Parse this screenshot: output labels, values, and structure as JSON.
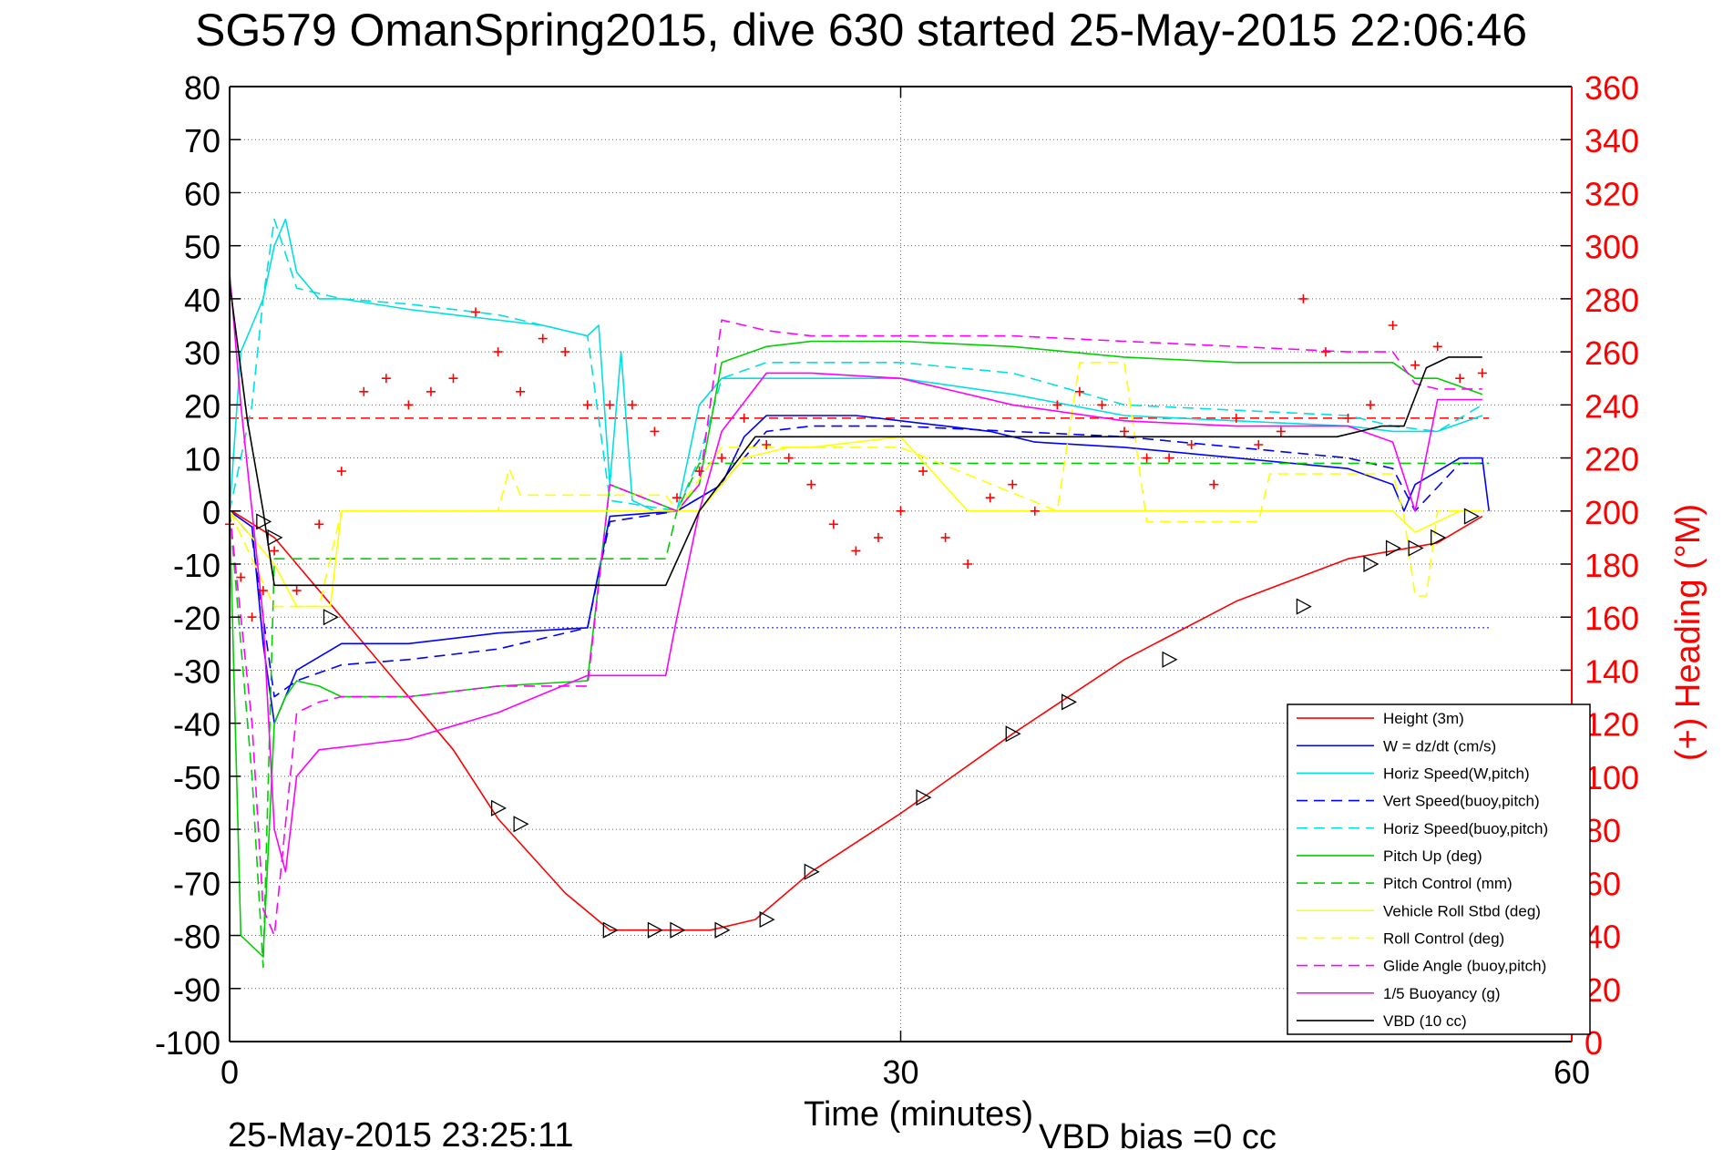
{
  "figure": {
    "title": "SG579 OmanSpring2015, dive 630 started 25-May-2015 22:06:46",
    "timestamp": "25-May-2015 23:25:11",
    "vbd_bias": "VBD bias =0 cc"
  },
  "chart_data": {
    "type": "line",
    "title": "SG579 OmanSpring2015, dive 630 started 25-May-2015 22:06:46",
    "xlabel": "Time (minutes)",
    "ylabel": "",
    "ylabel_right": "(+) Heading (°M)",
    "xlim": [
      0,
      60
    ],
    "ylim": [
      -100,
      80
    ],
    "ylim_right": [
      0,
      360
    ],
    "x_ticks": [
      "0",
      "30",
      "60"
    ],
    "x_tick_values": [
      0,
      30,
      60
    ],
    "y_ticks": [
      "80",
      "70",
      "60",
      "50",
      "40",
      "30",
      "20",
      "10",
      "0",
      "-10",
      "-20",
      "-30",
      "-40",
      "-50",
      "-60",
      "-70",
      "-80",
      "-90",
      "-100"
    ],
    "y_tick_values": [
      80,
      70,
      60,
      50,
      40,
      30,
      20,
      10,
      0,
      -10,
      -20,
      -30,
      -40,
      -50,
      -60,
      -70,
      -80,
      -90,
      -100
    ],
    "y_ticks_right": [
      "360",
      "340",
      "320",
      "300",
      "280",
      "260",
      "240",
      "220",
      "200",
      "180",
      "160",
      "140",
      "120",
      "100",
      "80",
      "60",
      "40",
      "20",
      "0"
    ],
    "y_tick_values_right": [
      360,
      340,
      320,
      300,
      280,
      260,
      240,
      220,
      200,
      180,
      160,
      140,
      120,
      100,
      80,
      60,
      40,
      20,
      0
    ],
    "grid": true,
    "legend_position": "bottom-right",
    "heading_ref": 235,
    "series": [
      {
        "name": "Height (3m)",
        "color": "#ff0000",
        "dash": "solid",
        "x": [
          0.1,
          2,
          5,
          10,
          12,
          15,
          17,
          18,
          20,
          21.5,
          23.5,
          26,
          30,
          35,
          40,
          45,
          50,
          54,
          56
        ],
        "y": [
          0,
          -5,
          -20,
          -45,
          -58,
          -72,
          -79,
          -79,
          -79,
          -79,
          -77,
          -68,
          -57,
          -42,
          -28,
          -17,
          -9,
          -6,
          -1
        ]
      },
      {
        "name": "W = dz/dt (cm/s)",
        "color": "#0000ff",
        "dash": "solid",
        "x": [
          0,
          1,
          1.5,
          2,
          3,
          5,
          8,
          12,
          16,
          17,
          20,
          22,
          23,
          24,
          26,
          28,
          30,
          32,
          34,
          36,
          40,
          45,
          50,
          52,
          52.5,
          53,
          55,
          56,
          56.3
        ],
        "y": [
          0,
          -3,
          -25,
          -40,
          -30,
          -25,
          -25,
          -23,
          -22,
          -1,
          0,
          5,
          14,
          18,
          18,
          18,
          17,
          16,
          15,
          13,
          12,
          10,
          8,
          5,
          0,
          5,
          10,
          10,
          0
        ]
      },
      {
        "name": "Horiz Speed(W,pitch)",
        "color": "#00e0e0",
        "dash": "solid",
        "x": [
          0,
          0.5,
          1,
          1.5,
          2,
          2.5,
          3,
          4,
          5,
          8,
          10,
          14,
          16,
          16.5,
          17,
          17.5,
          18,
          19,
          20,
          21,
          22,
          24,
          26,
          30,
          35,
          40,
          45,
          50,
          52,
          53,
          54,
          56
        ],
        "y": [
          0,
          30,
          35,
          40,
          50,
          55,
          45,
          40,
          40,
          38,
          37,
          35,
          33,
          35,
          5,
          30,
          2,
          0,
          0,
          20,
          25,
          25,
          25,
          25,
          22,
          18,
          17,
          16,
          15,
          15,
          15,
          18
        ]
      },
      {
        "name": "Vert Speed(buoy,pitch)",
        "color": "#0000ff",
        "dash": "dash",
        "x": [
          0,
          1,
          1.5,
          2,
          3,
          5,
          8,
          12,
          16,
          17,
          20,
          22,
          24,
          26,
          30,
          35,
          40,
          45,
          50,
          52,
          53,
          55,
          56
        ],
        "y": [
          0,
          -5,
          -20,
          -35,
          -32,
          -29,
          -28,
          -26,
          -22,
          -2,
          0,
          5,
          15,
          16,
          16,
          15,
          14,
          12,
          10,
          8,
          0,
          9,
          9
        ]
      },
      {
        "name": "Horiz Speed(buoy,pitch)",
        "color": "#00e0e0",
        "dash": "dash",
        "x": [
          0,
          1,
          1.5,
          2,
          3,
          5,
          8,
          12,
          16,
          17,
          20,
          21,
          22,
          24,
          26,
          30,
          35,
          40,
          45,
          50,
          52,
          54,
          56
        ],
        "y": [
          0,
          20,
          40,
          55,
          42,
          40,
          39,
          37,
          33,
          2,
          0,
          10,
          25,
          28,
          28,
          28,
          26,
          20,
          19,
          18,
          16,
          15,
          20
        ]
      },
      {
        "name": "Pitch Up (deg)",
        "color": "#00d000",
        "dash": "solid",
        "x": [
          0,
          0.5,
          1.5,
          2,
          2.5,
          3,
          4,
          5,
          8,
          12,
          16,
          17,
          20,
          21,
          22,
          24,
          26,
          30,
          35,
          40,
          45,
          50,
          52,
          53,
          54,
          56
        ],
        "y": [
          0,
          -80,
          -84,
          -40,
          -35,
          -32,
          -33,
          -35,
          -35,
          -33,
          -32,
          5,
          0,
          5,
          28,
          31,
          32,
          32,
          31,
          29,
          28,
          28,
          28,
          25,
          25,
          22
        ]
      },
      {
        "name": "Pitch Control (mm)",
        "color": "#00d000",
        "dash": "dash",
        "x": [
          0,
          1,
          1.5,
          2,
          3,
          19.5,
          20,
          21,
          22,
          56.3
        ],
        "y": [
          0,
          -50,
          -86,
          -9,
          -9,
          -9,
          0,
          9,
          9,
          9
        ]
      },
      {
        "name": "Vehicle Roll Stbd (deg)",
        "color": "#ffff00",
        "dash": "solid",
        "x": [
          0,
          1,
          2,
          3,
          4,
          4.5,
          5,
          8,
          10,
          12,
          14,
          16,
          17,
          19,
          21,
          23,
          25,
          26,
          30,
          33,
          35,
          37,
          38,
          40,
          42,
          45,
          47,
          48,
          50,
          52,
          53,
          55,
          56
        ],
        "y": [
          0,
          -5,
          -10,
          -18,
          -18,
          -18,
          0,
          0,
          0,
          0,
          0,
          0,
          0,
          0,
          0,
          10,
          12,
          12,
          14,
          0,
          0,
          0,
          0,
          0,
          0,
          0,
          0,
          0,
          0,
          0,
          -4,
          0,
          0
        ]
      },
      {
        "name": "Roll Control (deg)",
        "color": "#ffff00",
        "dash": "dash",
        "x": [
          0,
          2,
          3,
          4,
          5,
          12,
          12.5,
          13,
          16,
          17,
          19.5,
          20,
          22,
          24,
          30,
          37,
          38,
          40,
          41,
          46,
          46.5,
          52,
          52.5,
          53,
          53.5,
          54,
          56
        ],
        "y": [
          0,
          -18,
          -18,
          -18,
          0,
          0,
          8,
          3,
          3,
          3,
          3,
          0,
          12,
          12,
          12,
          0,
          28,
          28,
          -2,
          -2,
          7,
          7,
          -1,
          -16,
          -16,
          0,
          0
        ]
      },
      {
        "name": "Glide Angle (buoy,pitch)",
        "color": "#ff00ff",
        "dash": "dash",
        "x": [
          0,
          0.5,
          1,
          1.5,
          2,
          3,
          4,
          5,
          8,
          12,
          16,
          17,
          20,
          21,
          22,
          24,
          26,
          30,
          35,
          40,
          45,
          50,
          52,
          53,
          54,
          56
        ],
        "y": [
          0,
          -20,
          -40,
          -75,
          -80,
          -38,
          -36,
          -35,
          -35,
          -33,
          -33,
          5,
          0,
          5,
          36,
          34,
          33,
          33,
          33,
          32,
          31,
          30,
          30,
          24,
          23,
          23
        ]
      },
      {
        "name": "1/5 Buoyancy (g)",
        "color": "#ff00ff",
        "dash": "solid",
        "x": [
          0,
          0.5,
          1,
          1.5,
          2,
          2.5,
          3,
          4,
          6,
          8,
          12,
          16,
          16.5,
          19.5,
          20,
          21,
          22,
          24,
          26,
          30,
          32,
          35,
          40,
          45,
          50,
          52,
          53,
          54,
          56
        ],
        "y": [
          45,
          20,
          0,
          -20,
          -60,
          -68,
          -50,
          -45,
          -44,
          -43,
          -38,
          -31,
          -31,
          -31,
          -20,
          0,
          15,
          26,
          26,
          25,
          23,
          20,
          17,
          16,
          16,
          13,
          0,
          21,
          21
        ]
      },
      {
        "name": "VBD (10 cc)",
        "color": "#000000",
        "dash": "solid",
        "x": [
          0,
          0.8,
          1.5,
          2,
          5,
          10,
          16,
          19.5,
          21,
          23.5,
          30,
          40,
          49.5,
          51.5,
          52.5,
          53.5,
          54.5,
          56
        ],
        "y": [
          43,
          17,
          0,
          -14,
          -14,
          -14,
          -14,
          -14,
          0,
          14,
          14,
          14,
          14,
          16,
          16,
          27,
          29,
          29
        ]
      }
    ],
    "heading": {
      "name": "(+) Heading (°M)",
      "color": "#ff0000",
      "x": [
        0,
        0.5,
        1,
        1.5,
        2,
        3,
        4,
        5,
        6,
        7,
        8,
        9,
        10,
        11,
        12,
        13,
        14,
        15,
        16,
        17,
        18,
        19,
        20,
        21,
        22,
        23,
        24,
        25,
        26,
        27,
        28,
        29,
        30,
        31,
        32,
        33,
        34,
        35,
        36,
        37,
        38,
        39,
        40,
        41,
        42,
        43,
        44,
        45,
        46,
        47,
        48,
        49,
        50,
        51,
        52,
        53,
        54,
        55,
        56
      ],
      "y": [
        195,
        175,
        160,
        170,
        185,
        170,
        195,
        215,
        245,
        250,
        240,
        245,
        250,
        275,
        260,
        245,
        265,
        260,
        240,
        240,
        240,
        230,
        205,
        215,
        220,
        235,
        225,
        220,
        210,
        195,
        185,
        190,
        200,
        215,
        190,
        180,
        205,
        210,
        200,
        240,
        245,
        240,
        230,
        220,
        220,
        225,
        210,
        235,
        225,
        230,
        280,
        260,
        235,
        240,
        270,
        255,
        262,
        250,
        252
      ]
    },
    "markers": {
      "name": "Height (3m)",
      "x": [
        1.5,
        2,
        4.5,
        12,
        13,
        17,
        19,
        20,
        22,
        24,
        26,
        31,
        35,
        37.5,
        42,
        48,
        51,
        52,
        53,
        54,
        55.5
      ],
      "y": [
        -2,
        -5,
        -20,
        -56,
        -59,
        -79,
        -79,
        -79,
        -79,
        -77,
        -68,
        -54,
        -42,
        -36,
        -28,
        -18,
        -10,
        -7,
        -7,
        -5,
        -1
      ]
    }
  }
}
